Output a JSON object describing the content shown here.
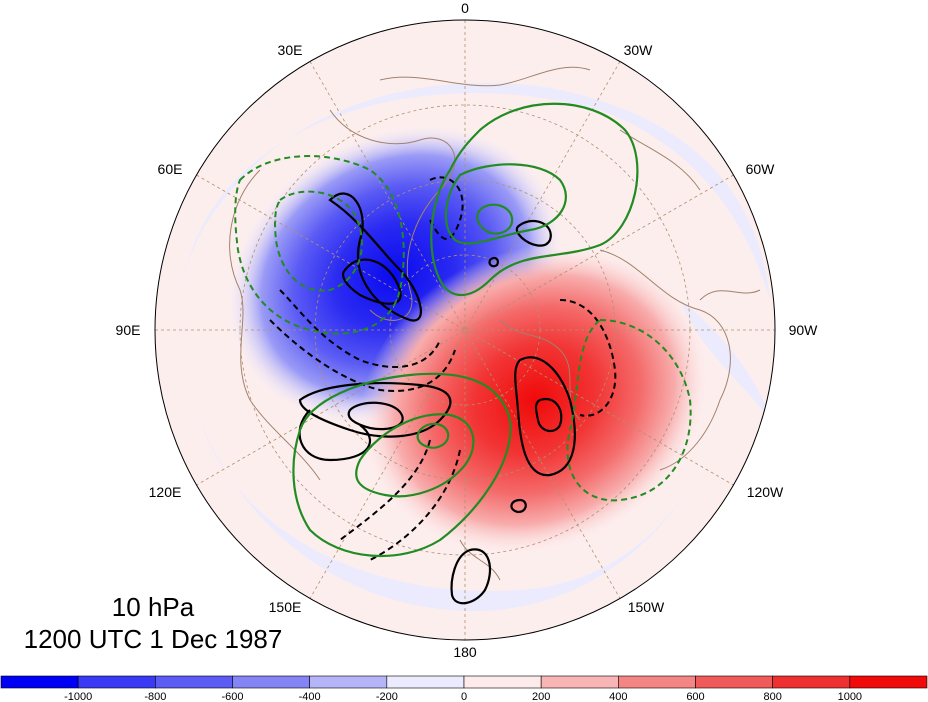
{
  "map": {
    "projection": "north-polar-stereographic",
    "level_label": "10 hPa",
    "time_label": "1200 UTC 1 Dec 1987",
    "longitude_labels": [
      "0",
      "30W",
      "60W",
      "90W",
      "120W",
      "150W",
      "180",
      "150E",
      "120E",
      "90E",
      "60E",
      "30E"
    ],
    "fill_colors": {
      "strong_negative": "#1414f0",
      "negative": "#6a6af5",
      "weak_negative": "#ebebfd",
      "weak_positive": "#fdecec",
      "positive": "#f27f7f",
      "strong_positive": "#f01414"
    },
    "contour_colors": {
      "black": "#000000",
      "green": "#228b22",
      "coastline": "#a0826d",
      "graticule": "#b09070"
    }
  },
  "colorbar": {
    "colors": [
      "#0000f5",
      "#3a3af5",
      "#5c5cf5",
      "#8484f5",
      "#b4b4f7",
      "#ebebfd",
      "#fdeaea",
      "#f9b5b5",
      "#f48585",
      "#f05a5a",
      "#ee3030",
      "#f00a0a"
    ],
    "tick_labels": [
      "-1000",
      "-800",
      "-600",
      "-400",
      "-200",
      "0",
      "200",
      "400",
      "600",
      "800",
      "1000"
    ]
  }
}
